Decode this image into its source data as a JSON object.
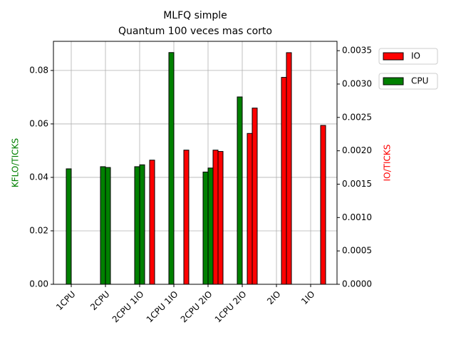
{
  "chart_data": {
    "type": "bar",
    "title": "MLFQ simple",
    "subtitle": "Quantum 100 veces mas corto",
    "ylabel": "KFLO/TICKS",
    "ylabel_color": "#008000",
    "y2label": "IO/TICKS",
    "y2label_color": "#ff0000",
    "categories": [
      "1CPU",
      "2CPU",
      "2CPU 1IO",
      "1CPU 1IO",
      "2CPU 2IO",
      "1CPU 2IO",
      "2IO",
      "1IO"
    ],
    "series": [
      {
        "name": "CPU",
        "color": "#008000",
        "axis": "y",
        "values": [
          [
            0.0432,
            0
          ],
          [
            0.044,
            0.0437
          ],
          [
            0.044,
            0.0447
          ],
          [
            0.0867,
            null
          ],
          [
            0.042,
            0.0435
          ],
          [
            0.0701,
            null
          ],
          [
            null,
            null
          ],
          [
            null,
            null
          ]
        ]
      },
      {
        "name": "IO",
        "color": "#ff0000",
        "axis": "y2",
        "values": [
          [
            0,
            0
          ],
          [
            0,
            0
          ],
          [
            null,
            0.00186
          ],
          [
            null,
            0.00201
          ],
          [
            0.00201,
            0.00199
          ],
          [
            0.00226,
            0.00264
          ],
          [
            0.0031,
            0.00347
          ],
          [
            null,
            0.00238
          ]
        ]
      }
    ],
    "ylim": [
      0,
      0.0909
    ],
    "yticks": [
      {
        "value": 0,
        "label": "0.00"
      },
      0.02,
      0.04,
      0.06,
      0.08
    ],
    "y2lim": [
      0,
      0.00364
    ],
    "y2ticks": [
      {
        "value": 0,
        "label": "0.0000"
      },
      0.0005,
      {
        "value": 0.001,
        "label": "0.0010"
      },
      0.0015,
      {
        "value": 0.002,
        "label": "0.0020"
      },
      0.0025,
      {
        "value": 0.003,
        "label": "0.0030"
      },
      0.0035
    ],
    "grid": true
  }
}
